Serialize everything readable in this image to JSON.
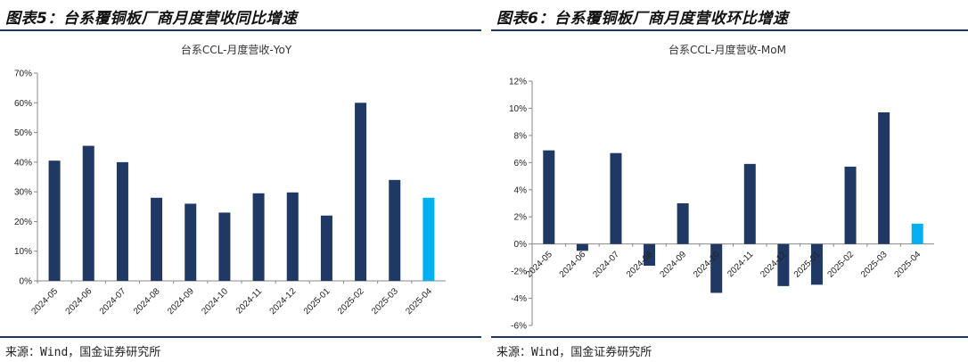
{
  "left": {
    "figure_title": "图表5：台系覆铜板厂商月度营收同比增速",
    "source": "来源：Wind，国金证券研究所"
  },
  "right": {
    "figure_title": "图表6：台系覆铜板厂商月度营收环比增速",
    "source": "来源：Wind，国金证券研究所"
  },
  "chart_data": [
    {
      "type": "bar",
      "title": "台系CCL-月度营收-YoY",
      "categories": [
        "2024-05",
        "2024-06",
        "2024-07",
        "2024-08",
        "2024-09",
        "2024-10",
        "2024-11",
        "2024-12",
        "2025-01",
        "2025-02",
        "2025-03",
        "2025-04"
      ],
      "values": [
        40.5,
        45.5,
        40,
        28,
        26,
        23,
        29.5,
        29.8,
        22,
        60,
        34,
        28
      ],
      "ylim": [
        0,
        70
      ],
      "yticks": [
        "0%",
        "10%",
        "20%",
        "30%",
        "40%",
        "50%",
        "60%",
        "70%"
      ],
      "ytick_values": [
        0,
        10,
        20,
        30,
        40,
        50,
        60,
        70
      ],
      "bar_color": "#1f3864",
      "highlight_color": "#00b0f0",
      "highlight_index": 11,
      "grid": false
    },
    {
      "type": "bar",
      "title": "台系CCL-月度营收-MoM",
      "categories": [
        "2024-05",
        "2024-06",
        "2024-07",
        "2024-08",
        "2024-09",
        "2024-10",
        "2024-11",
        "2024-12",
        "2025-01",
        "2025-02",
        "2025-03",
        "2025-04"
      ],
      "values": [
        6.9,
        -0.5,
        6.7,
        -1.6,
        3.0,
        -3.6,
        5.9,
        -3.1,
        -3.0,
        5.7,
        9.7,
        1.5
      ],
      "ylim": [
        -6,
        12
      ],
      "yticks": [
        "-6%",
        "-4%",
        "-2%",
        "0%",
        "2%",
        "4%",
        "6%",
        "8%",
        "10%",
        "12%"
      ],
      "ytick_values": [
        -6,
        -4,
        -2,
        0,
        2,
        4,
        6,
        8,
        10,
        12
      ],
      "bar_color": "#1f3864",
      "highlight_color": "#00b0f0",
      "highlight_index": 11,
      "grid": false
    }
  ]
}
